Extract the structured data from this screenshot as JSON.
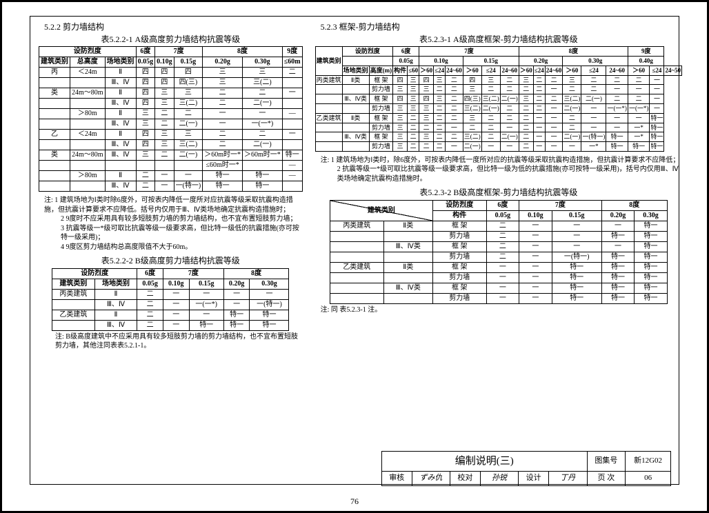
{
  "page_number": "76",
  "left": {
    "sec": "5.2.2 剪力墙结构",
    "t1_title": "表5.2.2-1  A级高度剪力墙结构抗震等级",
    "t1": {
      "h1": [
        "设防烈度",
        "6度",
        "7度",
        "",
        "8度",
        "",
        "9度"
      ],
      "h2": [
        "建筑类别",
        "总高度",
        "场地类别",
        "0.05g",
        "0.10g",
        "0.15g",
        "0.20g",
        "0.30g",
        "≤60m"
      ],
      "rows": [
        [
          "丙",
          "＜24m",
          "Ⅱ",
          "四",
          "四",
          "四",
          "三",
          "三",
          "二"
        ],
        [
          "",
          "",
          "Ⅲ、Ⅳ",
          "四",
          "四",
          "四(三)",
          "三",
          "三(二)",
          ""
        ],
        [
          "类",
          "24m～80m",
          "Ⅱ",
          "四",
          "三",
          "三",
          "二",
          "二",
          "一"
        ],
        [
          "",
          "",
          "Ⅲ、Ⅳ",
          "四",
          "三",
          "三(二)",
          "二",
          "二(一)",
          ""
        ],
        [
          "",
          "＞80m",
          "Ⅱ",
          "三",
          "二",
          "二",
          "一",
          "一",
          "—"
        ],
        [
          "",
          "",
          "Ⅲ、Ⅳ",
          "三",
          "二",
          "二(一)",
          "一",
          "一(一*)",
          ""
        ],
        [
          "乙",
          "＜24m",
          "Ⅱ",
          "四",
          "三",
          "三",
          "二",
          "二",
          "一"
        ],
        [
          "",
          "",
          "Ⅲ、Ⅳ",
          "四",
          "三",
          "三(二)",
          "二",
          "二(一)",
          ""
        ],
        [
          "类",
          "24m～80m",
          "Ⅲ、Ⅳ",
          "三",
          "二",
          "二(一)",
          "＞60m时一*",
          "＞60m时一*",
          "特一"
        ],
        [
          "",
          "",
          "",
          "",
          "",
          "",
          "≤60m时一*",
          "",
          "—"
        ],
        [
          "",
          "＞80m",
          "Ⅱ",
          "二",
          "一",
          "一",
          "特一",
          "特一",
          "—"
        ],
        [
          "",
          "",
          "Ⅲ、Ⅳ",
          "二",
          "一",
          "一(特一)",
          "特一",
          "特一",
          ""
        ]
      ]
    },
    "notes1": [
      "注: 1  建筑场地为Ⅰ类时除6度外，可按表内降低一度所对应抗震等级采取抗震构造措施，但抗震计算要求不应降低。括号内仅用于Ⅲ、Ⅳ类场地确定抗震构造措施时；",
      "2  9度时不应采用具有较多短肢剪力墙的剪力墙结构，也不宜布置短肢剪力墙；",
      "3  抗震等级一*级可取比抗震等级一级要求高，但比特一级低的抗震措施(亦可按特一级采用)；",
      "4  9度区剪力墙结构总高度限值不大于60m。"
    ],
    "t2_title": "表5.2.2-2  B级高度剪力墙结构抗震等级",
    "t2": {
      "h1": [
        "设防烈度",
        "6度",
        "7度",
        "",
        "8度",
        ""
      ],
      "h2": [
        "建筑类别",
        "场地类别",
        "0.05g",
        "0.10g",
        "0.15g",
        "0.20g",
        "0.30g"
      ],
      "rows": [
        [
          "丙类建筑",
          "Ⅱ",
          "二",
          "一",
          "一",
          "一",
          "一"
        ],
        [
          "",
          "Ⅲ、Ⅳ",
          "二",
          "一",
          "一(一*)",
          "一",
          "一(特一)"
        ],
        [
          "乙类建筑",
          "Ⅱ",
          "二",
          "一",
          "一",
          "特一",
          "特一"
        ],
        [
          "",
          "Ⅲ、Ⅳ",
          "二",
          "一",
          "特一",
          "特一",
          "特一"
        ]
      ]
    },
    "notes2": "注:  B级高度建筑中不应采用具有较多短肢剪力墙的剪力墙结构，也不宜布置短肢剪力墙，其他注同表表5.2.1-1。"
  },
  "right": {
    "sec": "5.2.3 框架-剪力墙结构",
    "t1_title": "表5.2.3-1  A级高度框架-剪力墙结构抗震等级",
    "t1": {
      "top": [
        "建筑类别",
        "设防烈度",
        "6度",
        "7度",
        "",
        "",
        "8度",
        "",
        "",
        "9度"
      ],
      "g": [
        "",
        "0.05g",
        "0.10g",
        "",
        "0.15g",
        "",
        "0.20g",
        "",
        "0.30g",
        "",
        "0.40g"
      ],
      "hh": [
        "场地类别",
        "高度(m)",
        "构件",
        "≤60",
        "＞60",
        "≤24",
        "24~60",
        "＞60",
        "≤24",
        "24~60",
        "＞60",
        "≤24",
        "24~60",
        "＞60",
        "≤24",
        "24~60",
        "＞60",
        "≤24",
        "24~50"
      ],
      "rows": [
        [
          "丙类建筑",
          "Ⅱ类",
          "框 架",
          "四",
          "三",
          "四",
          "三",
          "二",
          "四",
          "三",
          "二",
          "三",
          "二",
          "二",
          "三",
          "二",
          "二",
          "二",
          "一"
        ],
        [
          "",
          "",
          "剪力墙",
          "三",
          "三",
          "三",
          "二",
          "二",
          "三",
          "二",
          "二",
          "二",
          "二",
          "一",
          "二",
          "二",
          "一",
          "一",
          "一"
        ],
        [
          "",
          "Ⅲ、Ⅳ类",
          "框 架",
          "四",
          "三",
          "四",
          "三",
          "二",
          "四(三)",
          "三(二)",
          "二(一)",
          "三",
          "二",
          "二",
          "三(二)",
          "二(一)",
          "二",
          "二",
          "一"
        ],
        [
          "",
          "",
          "剪力墙",
          "三",
          "三",
          "三",
          "二",
          "二",
          "三(二)",
          "二(一)",
          "二",
          "二",
          "二",
          "一",
          "二(一)",
          "一",
          "一(一*)",
          "一(一*)",
          "一"
        ],
        [
          "乙类建筑",
          "Ⅱ类",
          "框 架",
          "三",
          "二",
          "三",
          "二",
          "二",
          "三",
          "二",
          "二",
          "二",
          "一",
          "一",
          "二",
          "一",
          "一",
          "一",
          "特一"
        ],
        [
          "",
          "",
          "剪力墙",
          "三",
          "二",
          "二",
          "二",
          "一",
          "二",
          "二",
          "一",
          "二",
          "一",
          "一",
          "二",
          "一",
          "一",
          "一*",
          "特一"
        ],
        [
          "",
          "Ⅲ、Ⅳ类",
          "框 架",
          "三",
          "二",
          "三",
          "二",
          "二",
          "三(二)",
          "二",
          "二(一)",
          "二",
          "一",
          "一",
          "二(一)",
          "一(特一)",
          "特一",
          "一*",
          "特一"
        ],
        [
          "",
          "",
          "剪力墙",
          "三",
          "二",
          "二",
          "二",
          "一",
          "二(一)",
          "一",
          "一",
          "二",
          "一",
          "一",
          "一",
          "一*",
          "特一",
          "特一",
          "特一"
        ]
      ]
    },
    "notes1": [
      "注: 1  建筑场地为Ⅰ类时，除6度外，可按表内降低一度所对应的抗震等级采取抗震构造措施，但抗震计算要求不应降低；",
      "2  抗震等级一*级可取比抗震等级一级要求高，但比特一级为低的抗震措施(亦可按特一级采用)，括号内仅用Ⅲ、Ⅳ类场地确定抗震构造措施时。"
    ],
    "t2_title": "表5.2.3-2  B级高度框架-剪力墙结构抗震等级",
    "t2": {
      "h1": [
        "建筑类别",
        "设防烈度",
        "6度",
        "7度",
        "",
        "8度",
        ""
      ],
      "h2": [
        "",
        "场地类别",
        "构件",
        "0.05g",
        "0.10g",
        "0.15g",
        "0.20g",
        "0.30g"
      ],
      "rows": [
        [
          "丙类建筑",
          "Ⅱ类",
          "框 架",
          "二",
          "一",
          "一",
          "一",
          "特一"
        ],
        [
          "",
          "",
          "剪力墙",
          "二",
          "一",
          "一",
          "特一",
          "特一"
        ],
        [
          "",
          "Ⅲ、Ⅳ类",
          "框 架",
          "二",
          "一",
          "一",
          "一",
          "特一"
        ],
        [
          "",
          "",
          "剪力墙",
          "二",
          "一",
          "一(特一)",
          "特一",
          "特一"
        ],
        [
          "乙类建筑",
          "Ⅱ类",
          "框 架",
          "一",
          "一",
          "特一",
          "特一",
          "特一"
        ],
        [
          "",
          "",
          "剪力墙",
          "一",
          "一",
          "特一",
          "特一",
          "特一"
        ],
        [
          "",
          "Ⅲ、Ⅳ类",
          "框 架",
          "一",
          "一",
          "特一",
          "特一",
          "特一"
        ],
        [
          "",
          "",
          "剪力墙",
          "一",
          "一",
          "特一",
          "特一",
          "特一"
        ]
      ]
    },
    "notes2": "注:  同 表5.2.3-1 注。"
  },
  "footer": {
    "title": "编制说明(三)",
    "atlas_lbl": "图集号",
    "atlas_val": "新12G02",
    "r_labels": [
      "审核",
      "校对",
      "设计",
      "页 次"
    ],
    "r_vals": [
      "ずみ仇",
      "孙锐",
      "丁丹",
      "06"
    ]
  }
}
